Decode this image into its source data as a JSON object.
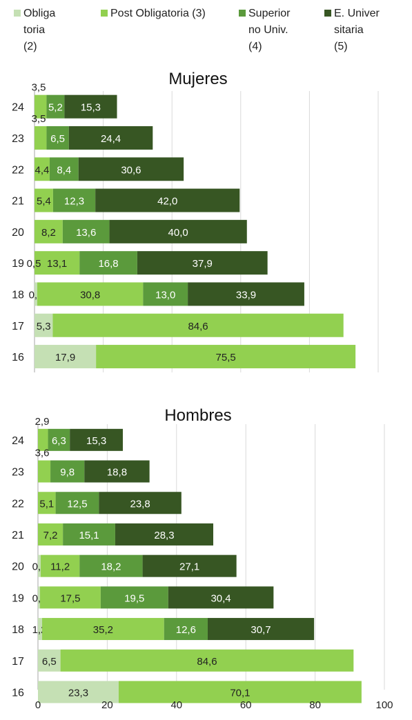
{
  "legend": [
    {
      "name": "Obliga\ntoria\n(2)",
      "color": "#c5e0b4"
    },
    {
      "name": "Post Obligatoria (3)",
      "color": "#92d050"
    },
    {
      "name": "Superior\nno Univ.\n(4)",
      "color": "#5b9a3c"
    },
    {
      "name": "E. Univer\nsitaria\n(5)",
      "color": "#375623"
    }
  ],
  "chart_data": [
    {
      "type": "bar",
      "orientation": "horizontal",
      "stacked": true,
      "title": "Mujeres",
      "categories": [
        "24",
        "23",
        "22",
        "21",
        "20",
        "19",
        "18",
        "17",
        "16"
      ],
      "series": [
        {
          "name": "Obligatoria (2)",
          "color": "#c5e0b4",
          "values": [
            null,
            null,
            null,
            null,
            null,
            null,
            0.8,
            5.3,
            17.9
          ]
        },
        {
          "name": "Post Obligatoria (3)",
          "color": "#92d050",
          "values": [
            3.5,
            3.5,
            4.4,
            5.4,
            8.2,
            13.1,
            30.8,
            84.6,
            75.5
          ]
        },
        {
          "name": "Superior no Univ. (4)",
          "color": "#5b9a3c",
          "values": [
            5.2,
            6.5,
            8.4,
            12.3,
            13.6,
            16.8,
            13.0,
            null,
            null
          ]
        },
        {
          "name": "E. Universitaria (5)",
          "color": "#375623",
          "values": [
            15.3,
            24.4,
            30.6,
            42.0,
            40.0,
            37.9,
            33.9,
            null,
            null
          ]
        }
      ],
      "extra_labels": [
        {
          "category": "19",
          "text": "0,5"
        }
      ],
      "label_text": {
        "24": [
          "",
          "3,5",
          "5,2",
          "15,3"
        ],
        "23": [
          "",
          "3,5",
          "6,5",
          "24,4"
        ],
        "22": [
          "",
          "4,4",
          "8,4",
          "30,6"
        ],
        "21": [
          "",
          "5,4",
          "12,3",
          "42,0"
        ],
        "20": [
          "",
          "8,2",
          "13,6",
          "40,0"
        ],
        "19": [
          "",
          "13,1",
          "16,8",
          "37,9"
        ],
        "18": [
          "0,8",
          "30,8",
          "13,0",
          "33,9"
        ],
        "17": [
          "5,3",
          "84,6",
          "",
          ""
        ],
        "16": [
          "17,9",
          "75,5",
          "",
          ""
        ]
      },
      "xlim": [
        0,
        100
      ],
      "grid": true
    },
    {
      "type": "bar",
      "orientation": "horizontal",
      "stacked": true,
      "title": "Hombres",
      "categories": [
        "24",
        "23",
        "22",
        "21",
        "20",
        "19",
        "18",
        "17",
        "16"
      ],
      "series": [
        {
          "name": "Obligatoria (2)",
          "color": "#c5e0b4",
          "values": [
            null,
            null,
            null,
            null,
            0.8,
            0.6,
            1.2,
            6.5,
            23.3
          ]
        },
        {
          "name": "Post Obligatoria (3)",
          "color": "#92d050",
          "values": [
            2.9,
            3.6,
            5.1,
            7.2,
            11.2,
            17.5,
            35.2,
            84.6,
            70.1
          ]
        },
        {
          "name": "Superior no Univ. (4)",
          "color": "#5b9a3c",
          "values": [
            6.3,
            9.8,
            12.5,
            15.1,
            18.2,
            19.5,
            12.6,
            null,
            null
          ]
        },
        {
          "name": "E. Universitaria (5)",
          "color": "#375623",
          "values": [
            15.3,
            18.8,
            23.8,
            28.3,
            27.1,
            30.4,
            30.7,
            null,
            null
          ]
        }
      ],
      "label_text": {
        "24": [
          "",
          "2,9",
          "6,3",
          "15,3"
        ],
        "23": [
          "",
          "3,6",
          "9,8",
          "18,8"
        ],
        "22": [
          "",
          "5,1",
          "12,5",
          "23,8"
        ],
        "21": [
          "",
          "7,2",
          "15,1",
          "28,3"
        ],
        "20": [
          "0,8",
          "11,2",
          "18,2",
          "27,1"
        ],
        "19": [
          "0,6",
          "17,5",
          "19,5",
          "30,4"
        ],
        "18": [
          "1,2",
          "35,2",
          "12,6",
          "30,7"
        ],
        "17": [
          "6,5",
          "84,6",
          "",
          ""
        ],
        "16": [
          "23,3",
          "70,1",
          "",
          ""
        ]
      },
      "xticks": [
        "0",
        "20",
        "40",
        "60",
        "80",
        "100"
      ],
      "xlim": [
        0,
        100
      ],
      "grid": true
    }
  ]
}
